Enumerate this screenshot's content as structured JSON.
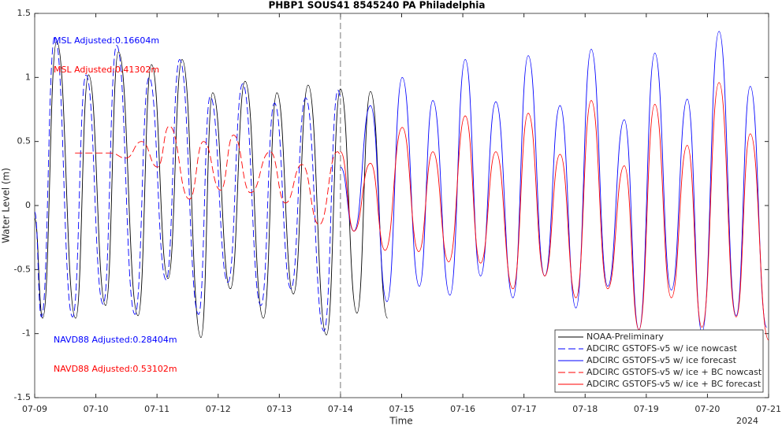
{
  "chart_data": {
    "type": "line",
    "title": "PHBP1 SOUS41 8545240 PA Philadelphia",
    "x_label": "Time",
    "y_label": "Water Level (m)",
    "x_year": "2024",
    "xlim": [
      0,
      12
    ],
    "ylim": [
      -1.5,
      1.5
    ],
    "xticks": [
      {
        "value": 0,
        "label": "07-09"
      },
      {
        "value": 1,
        "label": "07-10"
      },
      {
        "value": 2,
        "label": "07-11"
      },
      {
        "value": 3,
        "label": "07-12"
      },
      {
        "value": 4,
        "label": "07-13"
      },
      {
        "value": 5,
        "label": "07-14"
      },
      {
        "value": 6,
        "label": "07-15"
      },
      {
        "value": 7,
        "label": "07-16"
      },
      {
        "value": 8,
        "label": "07-17"
      },
      {
        "value": 9,
        "label": "07-18"
      },
      {
        "value": 10,
        "label": "07-19"
      },
      {
        "value": 11,
        "label": "07-20"
      },
      {
        "value": 12,
        "label": "07-21"
      }
    ],
    "yticks": [
      -1.5,
      -1,
      -0.5,
      0,
      0.5,
      1,
      1.5
    ],
    "vline_x": 5,
    "legend_position": "lower right",
    "annotations": [
      {
        "text": "MSL Adjusted:0.16604m",
        "color": "#0000ff"
      },
      {
        "text": "MSL Adjusted:0.41302m",
        "color": "#ff0000"
      },
      {
        "text": "NAVD88 Adjusted:0.28404m",
        "color": "#0000ff"
      },
      {
        "text": "NAVD88 Adjusted:0.53102m",
        "color": "#ff0000"
      }
    ],
    "series": [
      {
        "name": "NOAA-Preliminary",
        "color": "#000000",
        "dash": false,
        "x": [
          0,
          0.13,
          0.36,
          0.67,
          0.88,
          1.16,
          1.37,
          1.69,
          1.91,
          2.18,
          2.41,
          2.72,
          2.91,
          3.2,
          3.44,
          3.74,
          3.96,
          4.23,
          4.47,
          4.77,
          5.0,
          5.27,
          5.49,
          5.77
        ],
        "values": [
          -0.1,
          -0.88,
          1.28,
          -0.88,
          1.02,
          -0.78,
          1.2,
          -0.86,
          1.1,
          -0.57,
          1.14,
          -1.03,
          0.88,
          -0.65,
          0.97,
          -0.88,
          0.88,
          -0.69,
          0.94,
          -1.01,
          0.91,
          -0.84,
          0.89,
          -0.88
        ]
      },
      {
        "name": "ADCIRC GSTOFS-v5 w/ ice nowcast",
        "color": "#0000ff",
        "dash": true,
        "x": [
          0,
          0.11,
          0.33,
          0.62,
          0.84,
          1.12,
          1.34,
          1.64,
          1.87,
          2.15,
          2.37,
          2.68,
          2.87,
          3.16,
          3.4,
          3.7,
          3.92,
          4.19,
          4.43,
          4.73,
          4.96,
          5.0
        ],
        "values": [
          -0.05,
          -0.87,
          1.32,
          -0.87,
          1.02,
          -0.77,
          1.25,
          -0.85,
          1.0,
          -0.58,
          1.14,
          -0.85,
          0.85,
          -0.6,
          0.95,
          -0.78,
          0.8,
          -0.65,
          0.84,
          -0.98,
          0.9,
          0.85
        ]
      },
      {
        "name": "ADCIRC GSTOFS-v5 w/ ice forecast",
        "color": "#0000ff",
        "dash": false,
        "x": [
          5.0,
          5.22,
          5.49,
          5.76,
          6.01,
          6.29,
          6.51,
          6.79,
          7.04,
          7.29,
          7.54,
          7.82,
          8.07,
          8.34,
          8.59,
          8.85,
          9.1,
          9.37,
          9.64,
          9.88,
          10.14,
          10.41,
          10.67,
          10.91,
          11.19,
          11.47,
          11.7,
          11.97
        ],
        "values": [
          0.3,
          -0.2,
          0.78,
          -0.75,
          1.0,
          -0.63,
          0.82,
          -0.7,
          1.14,
          -0.55,
          0.81,
          -0.72,
          1.17,
          -0.55,
          0.78,
          -0.8,
          1.22,
          -0.63,
          0.67,
          -0.97,
          1.19,
          -0.66,
          0.83,
          -0.99,
          1.36,
          -0.86,
          0.93,
          -0.95
        ]
      },
      {
        "name": "ADCIRC GSTOFS-v5 w/ ice + BC nowcast",
        "color": "#ff0000",
        "dash": true,
        "x": [
          0.66,
          1.24,
          1.49,
          1.75,
          2.01,
          2.2,
          2.53,
          2.76,
          3.04,
          3.25,
          3.53,
          3.85,
          4.1,
          4.37,
          4.65,
          4.95,
          5.0
        ],
        "values": [
          0.41,
          0.41,
          0.37,
          0.5,
          0.3,
          0.62,
          0.05,
          0.5,
          0.12,
          0.55,
          0.1,
          0.42,
          0.02,
          0.32,
          -0.15,
          0.42,
          0.4
        ]
      },
      {
        "name": "ADCIRC GSTOFS-v5 w/ ice + BC forecast",
        "color": "#ff0000",
        "dash": false,
        "x": [
          5.0,
          5.22,
          5.49,
          5.73,
          6.01,
          6.28,
          6.51,
          6.77,
          7.04,
          7.29,
          7.54,
          7.82,
          8.07,
          8.34,
          8.59,
          8.85,
          9.1,
          9.37,
          9.64,
          9.88,
          10.14,
          10.41,
          10.67,
          10.91,
          11.19,
          11.47,
          11.7,
          12.0
        ],
        "values": [
          0.42,
          -0.2,
          0.33,
          -0.35,
          0.61,
          -0.36,
          0.42,
          -0.44,
          0.7,
          -0.45,
          0.42,
          -0.65,
          0.72,
          -0.55,
          0.4,
          -0.72,
          0.82,
          -0.65,
          0.31,
          -0.97,
          0.79,
          -0.72,
          0.47,
          -0.95,
          0.96,
          -0.87,
          0.56,
          -1.05
        ]
      }
    ]
  }
}
